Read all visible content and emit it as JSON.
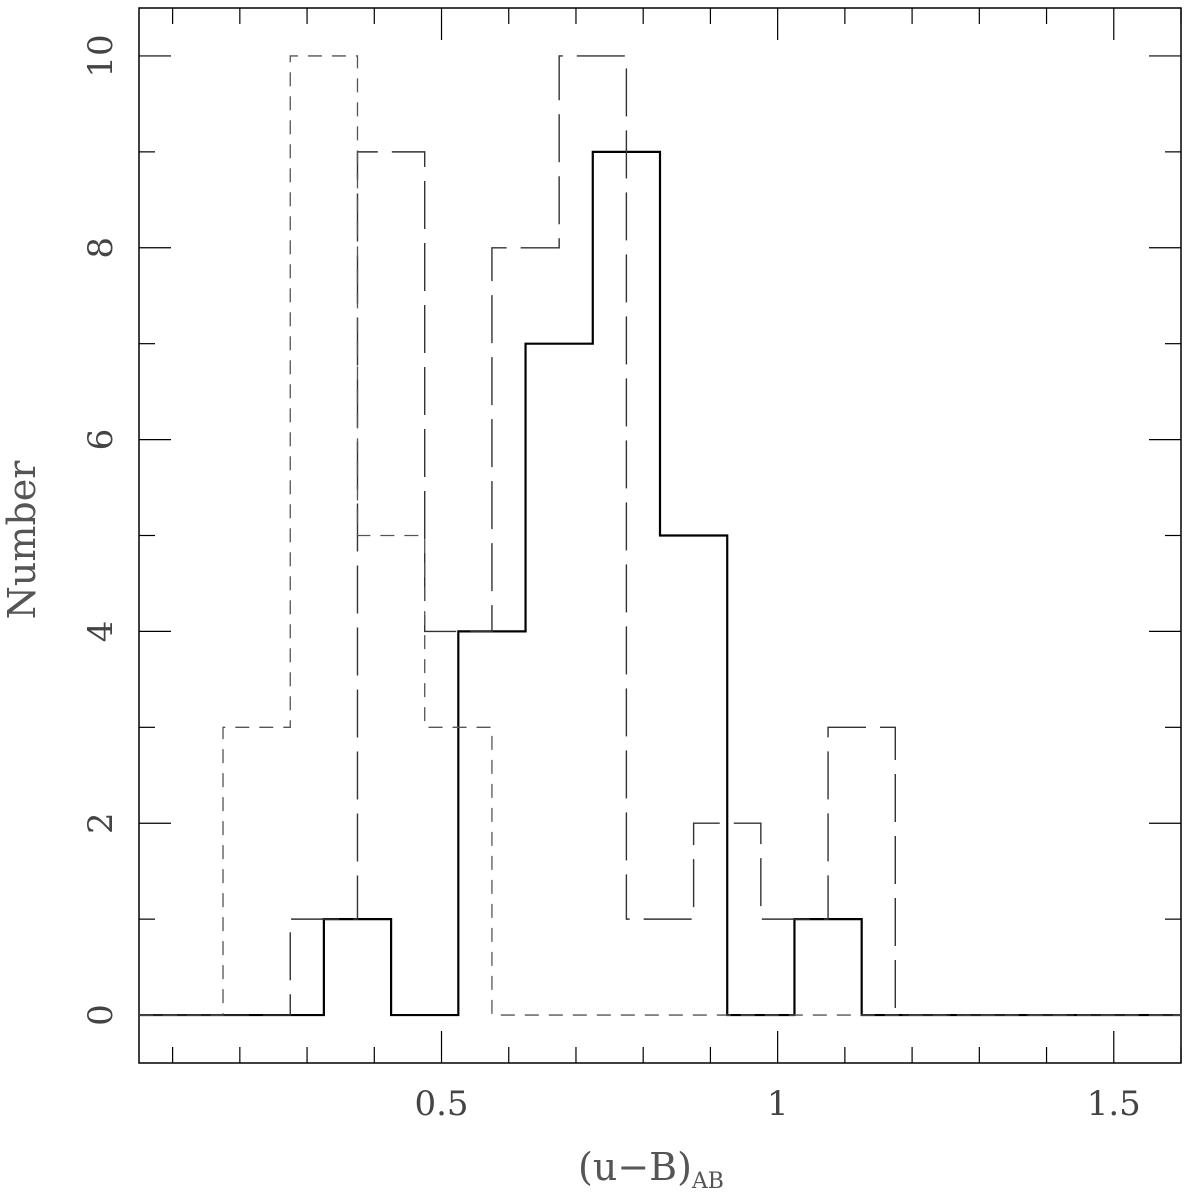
{
  "chart_data": {
    "type": "step",
    "xlabel": "(u−B)",
    "xlabel_subscript": "AB",
    "ylabel": "Number",
    "xlim": [
      0.05,
      1.6
    ],
    "ylim": [
      -0.5,
      10.5
    ],
    "x_major_ticks": [
      0.5,
      1,
      1.5
    ],
    "x_tick_labels": [
      "0.5",
      "1",
      "1.5"
    ],
    "x_minor_step": 0.1,
    "y_major_ticks": [
      0,
      2,
      4,
      6,
      8,
      10
    ],
    "y_tick_labels": [
      "0",
      "2",
      "4",
      "6",
      "8",
      "10"
    ],
    "y_minor_step": 1,
    "grid": false,
    "series": [
      {
        "style": "solid",
        "color": "#000000",
        "bin_edges": [
          0.05,
          0.175,
          0.275,
          0.325,
          0.425,
          0.525,
          0.625,
          0.725,
          0.825,
          0.925,
          1.025,
          1.125,
          1.6
        ],
        "counts": [
          0,
          0,
          0,
          1,
          0,
          4,
          7,
          9,
          5,
          0,
          1,
          0
        ]
      },
      {
        "style": "long-dash",
        "color": "#333333",
        "bin_edges": [
          0.05,
          0.175,
          0.275,
          0.375,
          0.475,
          0.575,
          0.675,
          0.775,
          0.875,
          0.975,
          1.075,
          1.175,
          1.6
        ],
        "counts": [
          0,
          0,
          1,
          9,
          4,
          8,
          10,
          1,
          2,
          1,
          3,
          0
        ]
      },
      {
        "style": "dash",
        "color": "#555555",
        "bin_edges": [
          0.05,
          0.175,
          0.275,
          0.375,
          0.475,
          0.575,
          1.6
        ],
        "counts": [
          0,
          3,
          10,
          5,
          3,
          0
        ]
      }
    ]
  }
}
